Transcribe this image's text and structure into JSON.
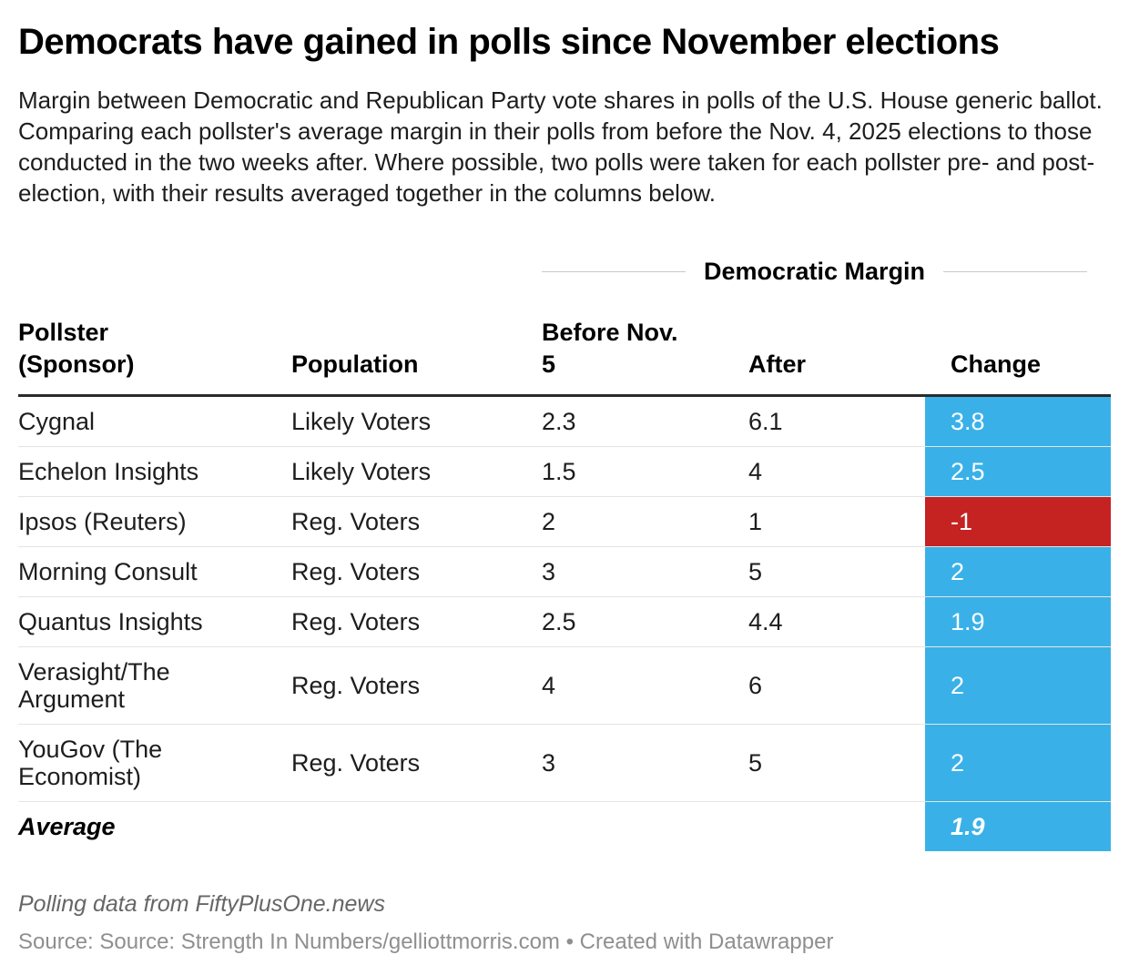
{
  "header": {
    "title": "Democrats have gained in polls since November elections",
    "description": "Margin between Democratic and Republican Party vote shares in polls of the U.S. House generic ballot. Comparing each pollster's average margin in their polls from before the Nov. 4, 2025 elections to those conducted in the two weeks after. Where possible, two polls were taken for each pollster pre- and post-election, with their results averaged together in the columns below."
  },
  "chart_data": {
    "type": "table",
    "title": "Democrats have gained in polls since November elections",
    "group_header": "Democratic Margin",
    "columns": {
      "pollster": "Pollster\n(Sponsor)",
      "population": "Population",
      "before": "Before Nov.\n5",
      "after": "After",
      "change": "Change"
    },
    "rows": [
      {
        "pollster": "Cygnal",
        "population": "Likely Voters",
        "before": 2.3,
        "after": 6.1,
        "change": 3.8
      },
      {
        "pollster": "Echelon Insights",
        "population": "Likely Voters",
        "before": 1.5,
        "after": 4,
        "change": 2.5
      },
      {
        "pollster": "Ipsos (Reuters)",
        "population": "Reg. Voters",
        "before": 2,
        "after": 1,
        "change": -1
      },
      {
        "pollster": "Morning Consult",
        "population": "Reg. Voters",
        "before": 3,
        "after": 5,
        "change": 2
      },
      {
        "pollster": "Quantus Insights",
        "population": "Reg. Voters",
        "before": 2.5,
        "after": 4.4,
        "change": 1.9
      },
      {
        "pollster": "Verasight/The\nArgument",
        "population": "Reg. Voters",
        "before": 4,
        "after": 6,
        "change": 2
      },
      {
        "pollster": "YouGov (The\nEconomist)",
        "population": "Reg. Voters",
        "before": 3,
        "after": 5,
        "change": 2
      }
    ],
    "average_row": {
      "pollster": "Average",
      "change": 1.9
    },
    "colors": {
      "positive_change_bg": "#39b1e8",
      "negative_change_bg": "#c52222",
      "change_text": "#ffffff"
    }
  },
  "footer": {
    "byline": "Polling data from FiftyPlusOne.news",
    "source": "Source: Source: Strength In Numbers/gelliottmorris.com • Created with Datawrapper"
  }
}
